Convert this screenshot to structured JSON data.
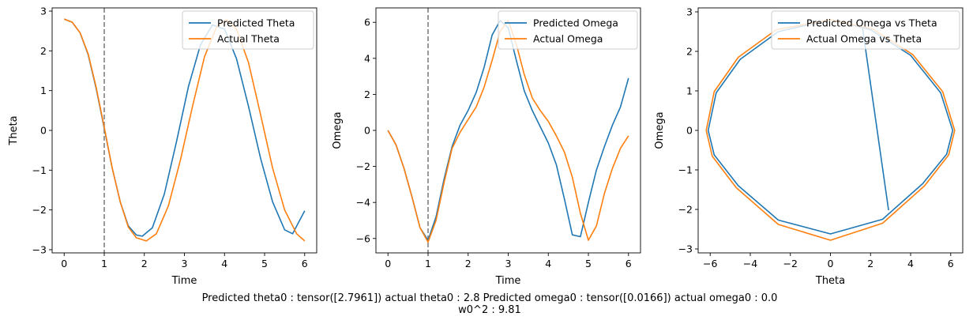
{
  "caption": {
    "line1": "Predicted theta0 : tensor([2.7961]) actual theta0 : 2.8 Predicted omega0 : tensor([0.0166]) actual omega0 : 0.0",
    "line2": "w0^2 : 9.81"
  },
  "colors": {
    "predicted": "#1f77b4",
    "actual": "#ff7f0e",
    "vline": "#808080"
  },
  "chart_data": [
    {
      "type": "line",
      "xlabel": "Time",
      "ylabel": "Theta",
      "xlim": [
        -0.3,
        6.3
      ],
      "ylim": [
        -3.08,
        3.08
      ],
      "xticks": [
        0,
        1,
        2,
        3,
        4,
        5,
        6
      ],
      "yticks": [
        -3,
        -2,
        -1,
        0,
        1,
        2,
        3
      ],
      "vline": 1,
      "legend": "top-right",
      "series": [
        {
          "name": "Predicted Theta",
          "x": [
            0,
            0.2,
            0.4,
            0.6,
            0.8,
            1.0,
            1.2,
            1.4,
            1.6,
            1.8,
            1.95,
            2.2,
            2.5,
            2.8,
            3.1,
            3.4,
            3.7,
            4.0,
            4.3,
            4.6,
            4.9,
            5.2,
            5.5,
            5.7,
            6.0
          ],
          "y": [
            2.8,
            2.72,
            2.45,
            1.9,
            1.05,
            0.05,
            -0.95,
            -1.8,
            -2.4,
            -2.63,
            -2.66,
            -2.45,
            -1.6,
            -0.3,
            1.1,
            2.15,
            2.65,
            2.55,
            1.8,
            0.6,
            -0.7,
            -1.8,
            -2.5,
            -2.6,
            -2.02
          ]
        },
        {
          "name": "Actual Theta",
          "x": [
            0,
            0.2,
            0.4,
            0.6,
            0.8,
            1.0,
            1.2,
            1.4,
            1.6,
            1.8,
            2.05,
            2.3,
            2.6,
            2.9,
            3.2,
            3.5,
            3.8,
            4.05,
            4.3,
            4.6,
            4.9,
            5.2,
            5.5,
            5.8,
            6.0
          ],
          "y": [
            2.8,
            2.72,
            2.45,
            1.92,
            1.08,
            0.08,
            -0.95,
            -1.8,
            -2.43,
            -2.7,
            -2.78,
            -2.6,
            -1.9,
            -0.75,
            0.6,
            1.85,
            2.6,
            2.78,
            2.55,
            1.7,
            0.4,
            -0.95,
            -2.0,
            -2.6,
            -2.78
          ]
        }
      ]
    },
    {
      "type": "line",
      "xlabel": "Time",
      "ylabel": "Omega",
      "xlim": [
        -0.3,
        6.3
      ],
      "ylim": [
        -6.8,
        6.8
      ],
      "xticks": [
        0,
        1,
        2,
        3,
        4,
        5,
        6
      ],
      "yticks": [
        -6,
        -4,
        -2,
        0,
        2,
        4,
        6
      ],
      "vline": 1,
      "legend": "top-right",
      "series": [
        {
          "name": "Predicted Omega",
          "x": [
            0,
            0.2,
            0.4,
            0.6,
            0.8,
            1.0,
            1.2,
            1.4,
            1.6,
            1.8,
            2.0,
            2.2,
            2.4,
            2.6,
            2.8,
            3.0,
            3.2,
            3.4,
            3.6,
            3.8,
            4.0,
            4.2,
            4.4,
            4.6,
            4.8,
            5.0,
            5.2,
            5.4,
            5.6,
            5.8,
            6.0
          ],
          "y": [
            0,
            -0.8,
            -2.1,
            -3.7,
            -5.4,
            -6.1,
            -4.8,
            -2.7,
            -0.9,
            0.3,
            1.1,
            2.1,
            3.5,
            5.3,
            6.1,
            5.7,
            3.9,
            2.2,
            1.1,
            0.2,
            -0.7,
            -1.9,
            -3.8,
            -5.8,
            -5.9,
            -4.0,
            -2.2,
            -0.9,
            0.3,
            1.3,
            2.9
          ]
        },
        {
          "name": "Actual Omega",
          "x": [
            0,
            0.2,
            0.4,
            0.6,
            0.8,
            1.0,
            1.2,
            1.4,
            1.6,
            1.8,
            2.0,
            2.2,
            2.4,
            2.6,
            2.8,
            3.0,
            3.2,
            3.4,
            3.6,
            3.8,
            4.0,
            4.2,
            4.4,
            4.6,
            4.8,
            5.0,
            5.2,
            5.4,
            5.6,
            5.8,
            6.0
          ],
          "y": [
            0,
            -0.8,
            -2.1,
            -3.7,
            -5.4,
            -6.2,
            -5.0,
            -2.9,
            -1.0,
            -0.1,
            0.6,
            1.3,
            2.4,
            3.9,
            5.5,
            6.1,
            4.8,
            3.1,
            1.8,
            1.1,
            0.5,
            -0.3,
            -1.2,
            -2.6,
            -4.6,
            -6.1,
            -5.3,
            -3.5,
            -2.1,
            -1.0,
            -0.3
          ]
        }
      ]
    },
    {
      "type": "line",
      "xlabel": "Theta",
      "ylabel": "Omega",
      "xlim": [
        -6.6,
        6.6
      ],
      "ylim": [
        -3.1,
        3.1
      ],
      "xticks": [
        -6,
        -4,
        -2,
        0,
        2,
        4,
        6
      ],
      "yticks": [
        -3,
        -2,
        -1,
        0,
        1,
        2,
        3
      ],
      "legend": "top-right",
      "series": [
        {
          "name": "Predicted Omega vs Theta",
          "x": [
            0,
            2.0,
            4.0,
            5.5,
            6.1,
            5.8,
            4.6,
            2.6,
            0,
            -2.6,
            -4.6,
            -5.8,
            -6.1,
            -5.7,
            -4.5,
            -2.6,
            0,
            1.6,
            2.9
          ],
          "y": [
            2.8,
            2.55,
            1.9,
            0.95,
            0,
            -0.6,
            -1.35,
            -2.25,
            -2.62,
            -2.27,
            -1.4,
            -0.62,
            0,
            0.95,
            1.8,
            2.5,
            2.8,
            2.6,
            -2.02
          ]
        },
        {
          "name": "Actual Omega vs Theta",
          "x": [
            0,
            2.1,
            4.1,
            5.6,
            6.2,
            5.9,
            4.7,
            2.6,
            0,
            -2.6,
            -4.7,
            -5.9,
            -6.2,
            -5.8,
            -4.6,
            -2.7,
            0
          ],
          "y": [
            2.8,
            2.57,
            1.92,
            0.98,
            0,
            -0.62,
            -1.4,
            -2.35,
            -2.78,
            -2.38,
            -1.45,
            -0.65,
            0,
            0.98,
            1.85,
            2.55,
            2.8
          ]
        }
      ]
    }
  ]
}
